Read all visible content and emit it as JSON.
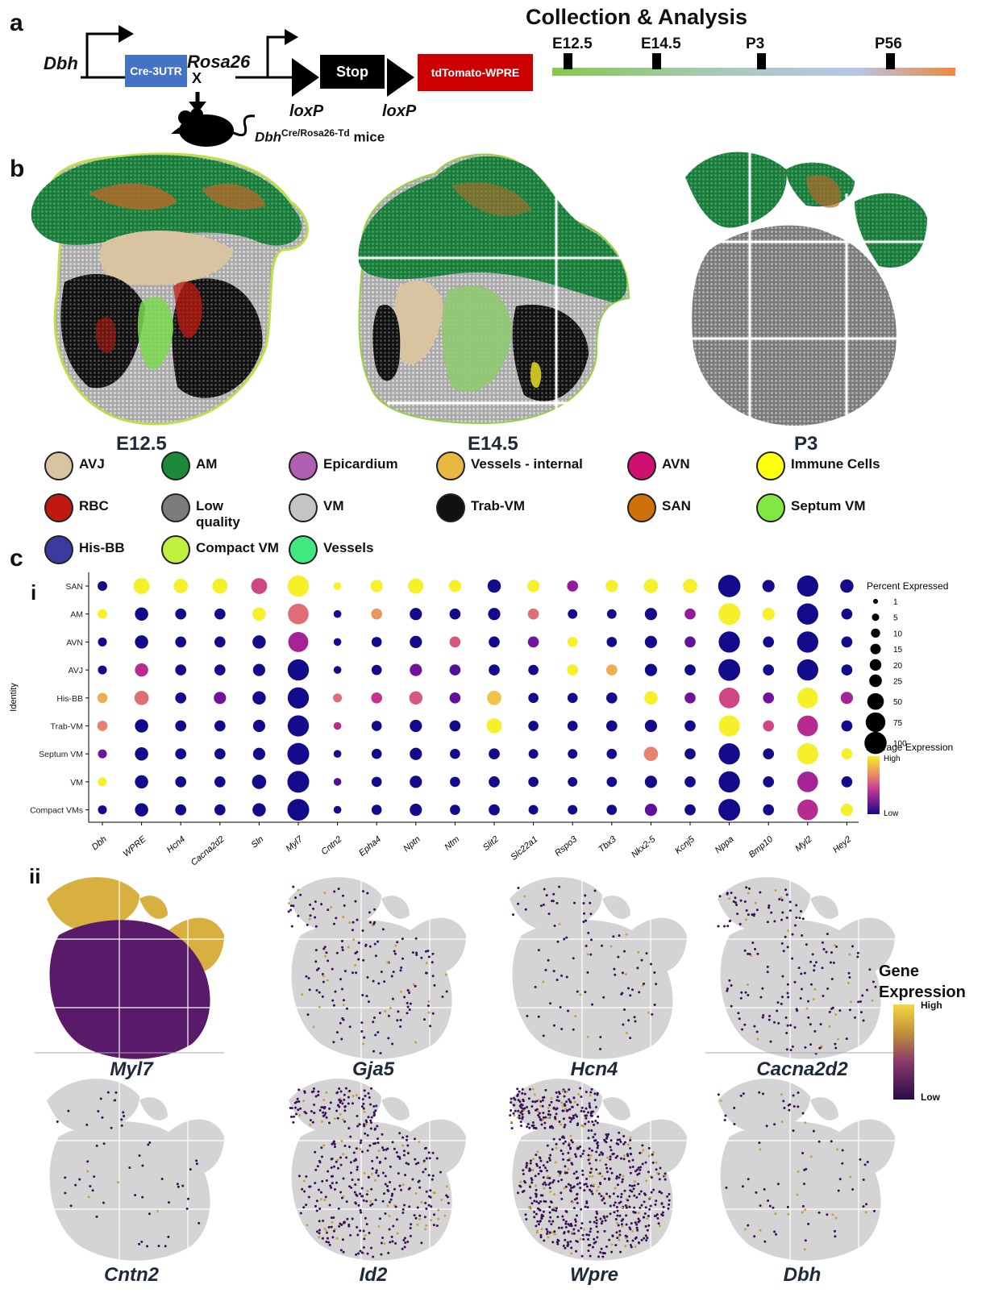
{
  "panels": {
    "a": "a",
    "b": "b",
    "c": "c",
    "ci": "i",
    "cii": "ii"
  },
  "construct": {
    "dbh_label": "Dbh",
    "cre_box": "Cre-3UTR",
    "rosa_label": "Rosa26",
    "cross_x": "X",
    "stop_box": "Stop",
    "tdtomato_box": "tdTomato-WPRE",
    "loxp1": "loxP",
    "loxp2": "loxP",
    "mice_main": "Dbh",
    "mice_sup": "Cre/Rosa26-Td",
    "mice_suffix": " mice",
    "colors": {
      "cre": "#4472c4",
      "stop": "#000000",
      "tdtomato": "#c00000"
    }
  },
  "timeline": {
    "title": "Collection & Analysis",
    "points": [
      "E12.5",
      "E14.5",
      "P3",
      "P56"
    ]
  },
  "stages": [
    "E12.5",
    "E14.5",
    "P3"
  ],
  "legend": [
    {
      "label": "AVJ",
      "color": "#d8c4a0"
    },
    {
      "label": "AM",
      "color": "#1b8a3a"
    },
    {
      "label": "Epicardium",
      "color": "#b060b0"
    },
    {
      "label": "Vessels - internal",
      "color": "#e8b840"
    },
    {
      "label": "AVN",
      "color": "#d01070"
    },
    {
      "label": "Immune Cells",
      "color": "#ffff10"
    },
    {
      "label": "RBC",
      "color": "#c01a10"
    },
    {
      "label": "Low quality",
      "color": "#7c7c7c"
    },
    {
      "label": "VM",
      "color": "#c4c4c4"
    },
    {
      "label": "Trab-VM",
      "color": "#111111"
    },
    {
      "label": "SAN",
      "color": "#d0700a"
    },
    {
      "label": "Septum VM",
      "color": "#80e840"
    },
    {
      "label": "His-BB",
      "color": "#3a3aa0"
    },
    {
      "label": "Compact VM",
      "color": "#c0f040"
    },
    {
      "label": "Vessels",
      "color": "#40e880"
    }
  ],
  "chart_data": {
    "type": "dotplot",
    "ylabel": "Identity",
    "identities": [
      "SAN",
      "AM",
      "AVN",
      "AVJ",
      "His-BB",
      "Trab-VM",
      "Septum VM",
      "VM",
      "Compact VMs"
    ],
    "genes": [
      "Dbh",
      "WPRE",
      "Hcn4",
      "Cacna2d2",
      "Sln",
      "Myl7",
      "Cntn2",
      "Epha4",
      "Nptn",
      "Ntm",
      "Slit2",
      "Slc22a1",
      "Rspo3",
      "Tbx3",
      "Nkx2-5",
      "Kcnj5",
      "Nppa",
      "Bmp10",
      "Myl2",
      "Hey2"
    ],
    "size_legend_title": "Percent Expressed",
    "size_legend": [
      1,
      5,
      10,
      15,
      20,
      25,
      50,
      75,
      100
    ],
    "color_legend_title": "Average Expression",
    "color_high": "High",
    "color_low": "Low",
    "expression_scale": "0 = low (dark blue), 1 = high (yellow)",
    "percent": [
      [
        10,
        40,
        30,
        35,
        40,
        80,
        5,
        20,
        35,
        20,
        25,
        20,
        15,
        20,
        30,
        30,
        90,
        20,
        80,
        25
      ],
      [
        10,
        25,
        15,
        15,
        25,
        75,
        5,
        15,
        20,
        15,
        20,
        15,
        10,
        10,
        20,
        15,
        85,
        20,
        80,
        15
      ],
      [
        8,
        25,
        15,
        15,
        25,
        70,
        5,
        12,
        20,
        15,
        15,
        15,
        12,
        12,
        20,
        15,
        80,
        15,
        80,
        15
      ],
      [
        8,
        25,
        15,
        15,
        20,
        80,
        5,
        12,
        20,
        15,
        15,
        12,
        15,
        15,
        20,
        15,
        85,
        15,
        80,
        15
      ],
      [
        12,
        30,
        15,
        20,
        25,
        80,
        8,
        15,
        25,
        15,
        30,
        12,
        12,
        15,
        25,
        15,
        75,
        15,
        75,
        20
      ],
      [
        12,
        25,
        15,
        15,
        20,
        80,
        5,
        12,
        20,
        15,
        35,
        12,
        12,
        15,
        20,
        15,
        80,
        15,
        75,
        15
      ],
      [
        8,
        25,
        15,
        15,
        20,
        85,
        5,
        12,
        20,
        12,
        15,
        10,
        10,
        12,
        30,
        15,
        80,
        15,
        80,
        15
      ],
      [
        8,
        25,
        15,
        15,
        30,
        85,
        5,
        12,
        20,
        12,
        15,
        12,
        10,
        12,
        20,
        15,
        80,
        15,
        75,
        15
      ],
      [
        8,
        25,
        15,
        15,
        25,
        85,
        5,
        12,
        20,
        12,
        15,
        10,
        10,
        12,
        20,
        15,
        85,
        15,
        75,
        20
      ]
    ],
    "expression": [
      [
        0.0,
        1.0,
        1.0,
        1.0,
        0.6,
        1.0,
        1.0,
        1.0,
        1.0,
        1.0,
        0.0,
        1.0,
        0.4,
        1.0,
        1.0,
        1.0,
        0.0,
        0.0,
        0.0,
        0.0
      ],
      [
        1.0,
        0.0,
        0.0,
        0.0,
        1.0,
        0.7,
        0.0,
        0.8,
        0.0,
        0.0,
        0.0,
        0.7,
        0.0,
        0.0,
        0.0,
        0.4,
        1.0,
        1.0,
        0.0,
        0.0
      ],
      [
        0.0,
        0.0,
        0.0,
        0.0,
        0.0,
        0.45,
        0.0,
        0.0,
        0.0,
        0.65,
        0.0,
        0.3,
        1.0,
        0.0,
        0.0,
        0.25,
        0.0,
        0.0,
        0.0,
        0.0
      ],
      [
        0.0,
        0.5,
        0.0,
        0.0,
        0.0,
        0.0,
        0.0,
        0.0,
        0.3,
        0.2,
        0.0,
        0.0,
        1.0,
        0.85,
        0.0,
        0.0,
        0.0,
        0.0,
        0.0,
        0.0
      ],
      [
        0.85,
        0.7,
        0.0,
        0.3,
        0.0,
        0.0,
        0.7,
        0.55,
        0.65,
        0.25,
        0.9,
        0.0,
        0.0,
        0.0,
        1.0,
        0.3,
        0.6,
        0.3,
        1.0,
        0.45
      ],
      [
        0.75,
        0.0,
        0.0,
        0.0,
        0.0,
        0.0,
        0.5,
        0.0,
        0.0,
        0.0,
        1.0,
        0.0,
        0.0,
        0.0,
        0.0,
        0.0,
        1.0,
        0.6,
        0.5,
        0.0
      ],
      [
        0.3,
        0.0,
        0.0,
        0.0,
        0.0,
        0.0,
        0.0,
        0.0,
        0.0,
        0.0,
        0.0,
        0.0,
        0.0,
        0.0,
        0.75,
        0.0,
        0.0,
        0.0,
        1.0,
        1.0
      ],
      [
        1.0,
        0.0,
        0.0,
        0.0,
        0.0,
        0.0,
        0.2,
        0.0,
        0.0,
        0.0,
        0.0,
        0.0,
        0.0,
        0.0,
        0.0,
        0.0,
        0.0,
        0.0,
        0.45,
        0.0
      ],
      [
        0.0,
        0.0,
        0.0,
        0.0,
        0.0,
        0.0,
        0.0,
        0.0,
        0.0,
        0.0,
        0.0,
        0.0,
        0.0,
        0.0,
        0.25,
        0.0,
        0.0,
        0.0,
        0.5,
        1.0
      ]
    ]
  },
  "spatial_genes": [
    "Myl7",
    "Gja5",
    "Hcn4",
    "Cacna2d2",
    "Cntn2",
    "Id2",
    "Wpre",
    "Dbh"
  ],
  "spatial_density": [
    0,
    0.12,
    0.06,
    0.12,
    0.03,
    0.3,
    0.55,
    0.05
  ],
  "gene_expr_legend": {
    "title_1": "Gene",
    "title_2": "Expression",
    "high": "High",
    "low": "Low"
  }
}
